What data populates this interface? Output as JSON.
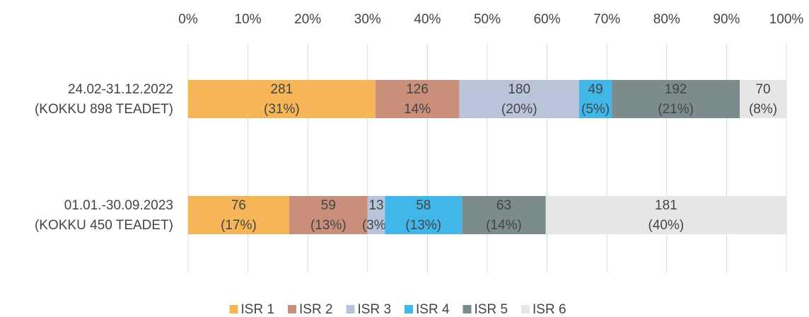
{
  "chart_data": {
    "type": "stacked_percent_bar",
    "orientation": "horizontal",
    "categories": [
      [
        "24.02-31.12.2022",
        "(KOKKU 898 TEADET)"
      ],
      [
        "01.01.-30.09.2023",
        "(KOKKU 450 TEADET)"
      ]
    ],
    "series": [
      {
        "name": "ISR 1",
        "color": "#f6b658",
        "values": [
          281,
          76
        ],
        "value_labels": [
          [
            "281",
            "(31%)"
          ],
          [
            "76",
            "(17%)"
          ]
        ]
      },
      {
        "name": "ISR 2",
        "color": "#c98f7b",
        "values": [
          126,
          59
        ],
        "value_labels": [
          [
            "126",
            "14%"
          ],
          [
            "59",
            "(13%)"
          ]
        ]
      },
      {
        "name": "ISR 3",
        "color": "#b9c3d9",
        "values": [
          180,
          13
        ],
        "value_labels": [
          [
            "180",
            "(20%)"
          ],
          [
            "13",
            "(3%)"
          ]
        ]
      },
      {
        "name": "ISR 4",
        "color": "#41b7e9",
        "values": [
          49,
          58
        ],
        "value_labels": [
          [
            "49",
            "(5%)"
          ],
          [
            "58",
            "(13%)"
          ]
        ]
      },
      {
        "name": "ISR 5",
        "color": "#7c8b8c",
        "values": [
          192,
          63
        ],
        "value_labels": [
          [
            "192",
            "(21%)"
          ],
          [
            "63",
            "(14%)"
          ]
        ]
      },
      {
        "name": "ISR 6",
        "color": "#e6e6e6",
        "values": [
          70,
          181
        ],
        "value_labels": [
          [
            "70",
            "(8%)"
          ],
          [
            "181",
            "(40%)"
          ]
        ]
      }
    ],
    "xlim": [
      0,
      100
    ],
    "xticks": [
      {
        "value": 0,
        "label": "0%"
      },
      {
        "value": 10,
        "label": "10%"
      },
      {
        "value": 20,
        "label": "20%"
      },
      {
        "value": 30,
        "label": "30%"
      },
      {
        "value": 40,
        "label": "40%"
      },
      {
        "value": 50,
        "label": "50%"
      },
      {
        "value": 60,
        "label": "60%"
      },
      {
        "value": 70,
        "label": "70%"
      },
      {
        "value": 80,
        "label": "80%"
      },
      {
        "value": 90,
        "label": "90%"
      },
      {
        "value": 100,
        "label": "100%"
      }
    ],
    "grid": true,
    "legend": "bottom"
  }
}
